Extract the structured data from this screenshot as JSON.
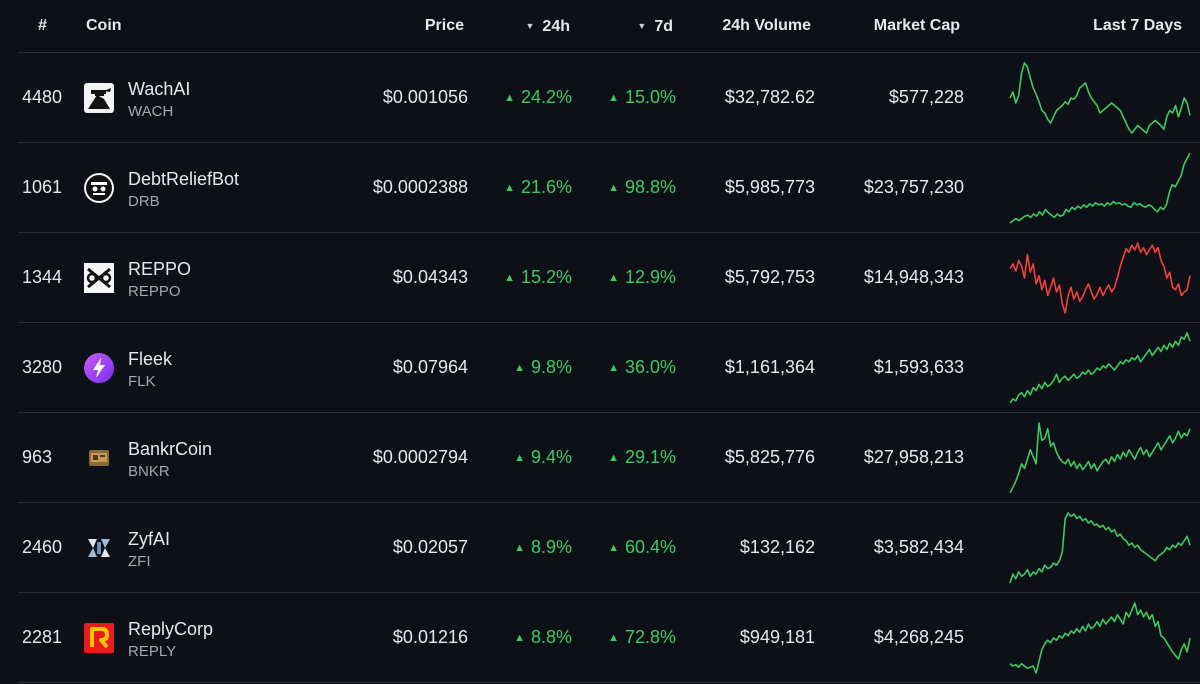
{
  "headers": {
    "rank": "#",
    "coin": "Coin",
    "price": "Price",
    "change_24h": "24h",
    "change_7d": "7d",
    "volume_24h": "24h Volume",
    "market_cap": "Market Cap",
    "last_7_days": "Last 7 Days"
  },
  "colors": {
    "background": "#0d1117",
    "positive": "#3fc95f",
    "negative": "#f2413a",
    "divider": "#2a2f37"
  },
  "rows": [
    {
      "rank": "4480",
      "name": "WachAI",
      "symbol": "WACH",
      "logo_icon": "wachai-logo-icon",
      "price": "$0.001056",
      "change_24h": "24.2%",
      "change_7d": "15.0%",
      "volume_24h": "$32,782.62",
      "market_cap": "$577,228",
      "trend": "up",
      "sparkline": [
        30,
        25,
        34,
        28,
        10,
        2,
        5,
        14,
        22,
        27,
        33,
        40,
        42,
        47,
        50,
        45,
        40,
        38,
        36,
        33,
        35,
        30,
        31,
        28,
        22,
        20,
        18,
        25,
        30,
        33,
        36,
        42,
        40,
        38,
        36,
        34,
        36,
        38,
        40,
        45,
        50,
        55,
        58,
        55,
        52,
        54,
        56,
        58,
        52,
        50,
        48,
        50,
        52,
        55,
        45,
        40,
        42,
        36,
        45,
        38,
        30,
        34,
        44
      ]
    },
    {
      "rank": "1061",
      "name": "DebtReliefBot",
      "symbol": "DRB",
      "logo_icon": "debtreliefbot-logo-icon",
      "price": "$0.0002388",
      "change_24h": "21.6%",
      "change_7d": "98.8%",
      "volume_24h": "$5,985,773",
      "market_cap": "$23,757,230",
      "trend": "up",
      "sparkline": [
        62,
        60,
        58,
        60,
        58,
        56,
        55,
        57,
        54,
        56,
        52,
        55,
        50,
        53,
        55,
        57,
        54,
        56,
        55,
        50,
        52,
        48,
        50,
        47,
        49,
        46,
        48,
        45,
        47,
        44,
        46,
        45,
        47,
        44,
        46,
        43,
        45,
        44,
        46,
        45,
        47,
        48,
        44,
        46,
        45,
        47,
        48,
        46,
        47,
        50,
        52,
        48,
        50,
        46,
        35,
        28,
        30,
        25,
        20,
        10,
        5,
        0
      ]
    },
    {
      "rank": "1344",
      "name": "REPPO",
      "symbol": "REPPO",
      "logo_icon": "reppo-logo-icon",
      "price": "$0.04343",
      "change_24h": "15.2%",
      "change_7d": "12.9%",
      "volume_24h": "$5,792,753",
      "market_cap": "$14,948,343",
      "trend": "down",
      "sparkline": [
        22,
        18,
        24,
        15,
        20,
        30,
        10,
        25,
        18,
        35,
        28,
        40,
        32,
        45,
        38,
        30,
        42,
        36,
        52,
        60,
        45,
        38,
        48,
        42,
        50,
        46,
        40,
        35,
        42,
        48,
        44,
        38,
        45,
        40,
        36,
        42,
        38,
        30,
        20,
        12,
        5,
        8,
        2,
        6,
        0,
        8,
        4,
        10,
        6,
        2,
        8,
        4,
        15,
        20,
        30,
        25,
        38,
        40,
        35,
        45,
        42,
        40,
        28
      ]
    },
    {
      "rank": "3280",
      "name": "Fleek",
      "symbol": "FLK",
      "logo_icon": "fleek-logo-icon",
      "price": "$0.07964",
      "change_24h": "9.8%",
      "change_7d": "36.0%",
      "volume_24h": "$1,161,364",
      "market_cap": "$1,593,633",
      "trend": "up",
      "sparkline": [
        70,
        66,
        68,
        62,
        60,
        64,
        58,
        62,
        55,
        58,
        52,
        56,
        50,
        54,
        52,
        48,
        42,
        50,
        46,
        44,
        48,
        45,
        42,
        46,
        44,
        40,
        42,
        38,
        42,
        40,
        36,
        38,
        34,
        36,
        32,
        35,
        38,
        34,
        30,
        32,
        28,
        30,
        26,
        28,
        24,
        30,
        26,
        22,
        18,
        24,
        20,
        16,
        20,
        14,
        18,
        12,
        16,
        10,
        14,
        6,
        8,
        2,
        10
      ]
    },
    {
      "rank": "963",
      "name": "BankrCoin",
      "symbol": "BNKR",
      "logo_icon": "bankrcoin-logo-icon",
      "price": "$0.0002794",
      "change_24h": "9.4%",
      "change_7d": "29.1%",
      "volume_24h": "$5,825,776",
      "market_cap": "$27,958,213",
      "trend": "up",
      "sparkline": [
        65,
        60,
        55,
        48,
        40,
        44,
        36,
        28,
        34,
        40,
        5,
        20,
        18,
        10,
        25,
        22,
        30,
        35,
        38,
        40,
        36,
        42,
        38,
        44,
        40,
        45,
        42,
        38,
        44,
        40,
        46,
        42,
        38,
        36,
        40,
        34,
        38,
        32,
        36,
        30,
        34,
        28,
        32,
        36,
        30,
        26,
        32,
        28,
        34,
        30,
        26,
        22,
        28,
        24,
        20,
        16,
        22,
        18,
        12,
        18,
        14,
        16,
        10
      ]
    },
    {
      "rank": "2460",
      "name": "ZyfAI",
      "symbol": "ZFI",
      "logo_icon": "zyfai-logo-icon",
      "price": "$0.02057",
      "change_24h": "8.9%",
      "change_7d": "60.4%",
      "volume_24h": "$132,162",
      "market_cap": "$3,582,434",
      "trend": "up",
      "sparkline": [
        68,
        60,
        64,
        58,
        62,
        60,
        56,
        62,
        58,
        60,
        55,
        58,
        52,
        55,
        54,
        50,
        52,
        48,
        40,
        10,
        5,
        8,
        6,
        10,
        8,
        12,
        10,
        14,
        12,
        16,
        15,
        18,
        16,
        20,
        18,
        22,
        20,
        26,
        24,
        28,
        30,
        34,
        32,
        36,
        34,
        38,
        40,
        42,
        44,
        46,
        48,
        44,
        42,
        40,
        36,
        38,
        34,
        36,
        32,
        34,
        30,
        26,
        34
      ]
    },
    {
      "rank": "2281",
      "name": "ReplyCorp",
      "symbol": "REPLY",
      "logo_icon": "replycorp-logo-icon",
      "price": "$0.01216",
      "change_24h": "8.8%",
      "change_7d": "72.8%",
      "volume_24h": "$949,181",
      "market_cap": "$4,268,245",
      "trend": "up",
      "sparkline": [
        52,
        54,
        53,
        55,
        52,
        54,
        56,
        55,
        54,
        60,
        50,
        40,
        35,
        32,
        34,
        30,
        32,
        28,
        30,
        26,
        28,
        24,
        26,
        22,
        25,
        20,
        24,
        18,
        22,
        20,
        16,
        20,
        14,
        18,
        15,
        12,
        16,
        10,
        14,
        18,
        8,
        12,
        6,
        0,
        10,
        6,
        12,
        8,
        14,
        10,
        20,
        16,
        28,
        30,
        34,
        38,
        42,
        45,
        48,
        40,
        35,
        42,
        30
      ]
    }
  ]
}
